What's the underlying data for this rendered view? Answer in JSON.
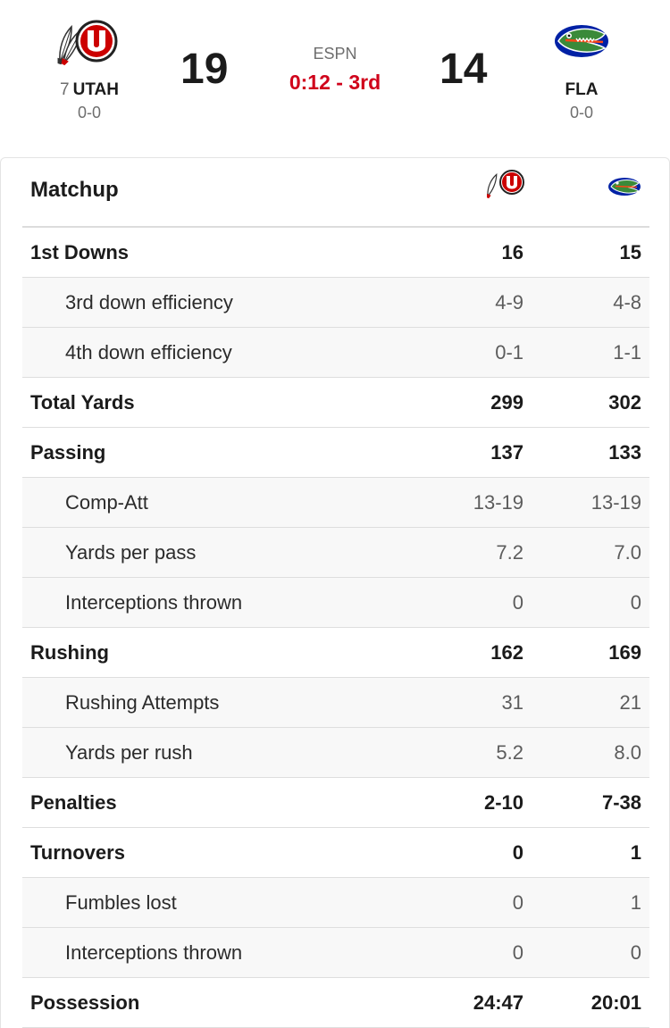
{
  "game": {
    "network": "ESPN",
    "clock": "0:12 - 3rd",
    "home": {
      "rank": "7",
      "abbr": "UTAH",
      "record": "0-0",
      "score": "19",
      "logo": "utah-utes-logo",
      "color": "#CC0000"
    },
    "away": {
      "abbr": "FLA",
      "record": "0-0",
      "score": "14",
      "logo": "florida-gators-logo",
      "color": "#0021A5"
    },
    "clock_color": "#D0021B"
  },
  "matchup": {
    "title": "Matchup",
    "rows": [
      {
        "label": "1st Downs",
        "home": "16",
        "away": "15",
        "kind": "main"
      },
      {
        "label": "3rd down efficiency",
        "home": "4-9",
        "away": "4-8",
        "kind": "sub"
      },
      {
        "label": "4th down efficiency",
        "home": "0-1",
        "away": "1-1",
        "kind": "sub"
      },
      {
        "label": "Total Yards",
        "home": "299",
        "away": "302",
        "kind": "main"
      },
      {
        "label": "Passing",
        "home": "137",
        "away": "133",
        "kind": "main"
      },
      {
        "label": "Comp-Att",
        "home": "13-19",
        "away": "13-19",
        "kind": "sub"
      },
      {
        "label": "Yards per pass",
        "home": "7.2",
        "away": "7.0",
        "kind": "sub"
      },
      {
        "label": "Interceptions thrown",
        "home": "0",
        "away": "0",
        "kind": "sub"
      },
      {
        "label": "Rushing",
        "home": "162",
        "away": "169",
        "kind": "main"
      },
      {
        "label": "Rushing Attempts",
        "home": "31",
        "away": "21",
        "kind": "sub"
      },
      {
        "label": "Yards per rush",
        "home": "5.2",
        "away": "8.0",
        "kind": "sub"
      },
      {
        "label": "Penalties",
        "home": "2-10",
        "away": "7-38",
        "kind": "main"
      },
      {
        "label": "Turnovers",
        "home": "0",
        "away": "1",
        "kind": "main"
      },
      {
        "label": "Fumbles lost",
        "home": "0",
        "away": "1",
        "kind": "sub"
      },
      {
        "label": "Interceptions thrown",
        "home": "0",
        "away": "0",
        "kind": "sub"
      },
      {
        "label": "Possession",
        "home": "24:47",
        "away": "20:01",
        "kind": "main"
      }
    ]
  }
}
